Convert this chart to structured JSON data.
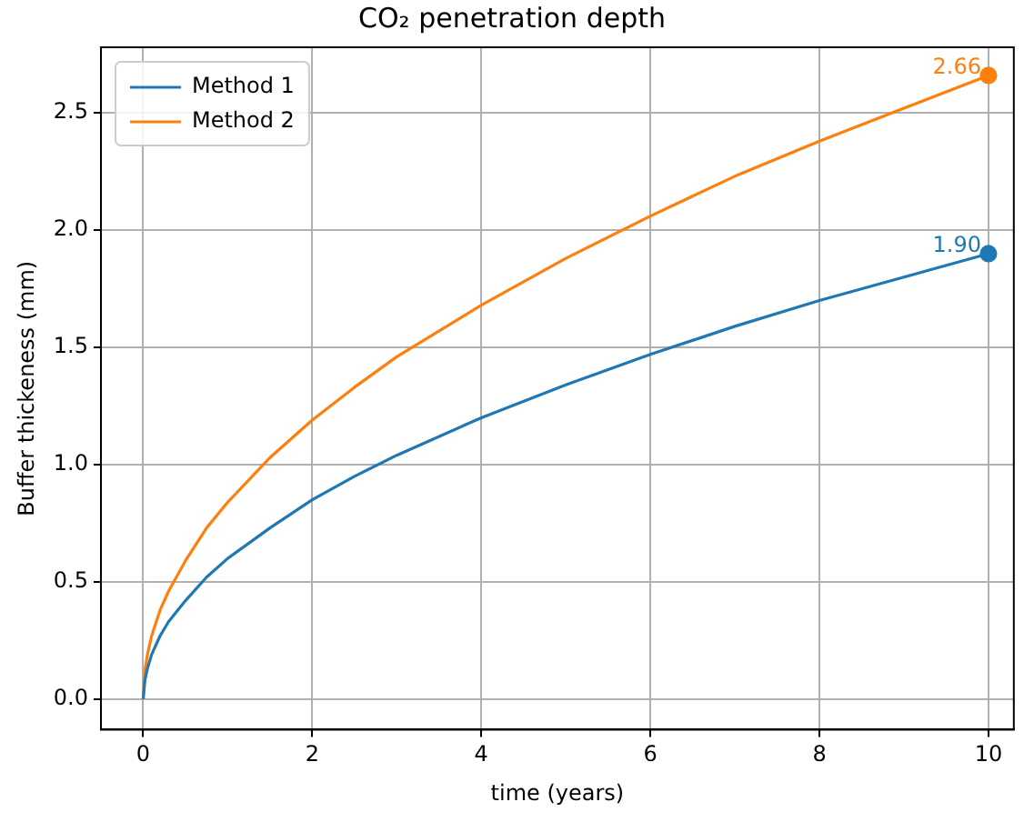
{
  "chart_data": {
    "type": "line",
    "title": "CO₂ penetration depth",
    "xlabel": "time (years)",
    "ylabel": "Buffer thickeness (mm)",
    "x": [
      0,
      0.02,
      0.05,
      0.1,
      0.2,
      0.3,
      0.5,
      0.75,
      1,
      1.5,
      2,
      2.5,
      3,
      4,
      5,
      6,
      7,
      8,
      9,
      10
    ],
    "series": [
      {
        "name": "Method 1",
        "color": "#1f77b4",
        "values": [
          0,
          0.08,
          0.13,
          0.19,
          0.27,
          0.33,
          0.42,
          0.52,
          0.6,
          0.73,
          0.85,
          0.95,
          1.04,
          1.2,
          1.34,
          1.47,
          1.59,
          1.7,
          1.8,
          1.9
        ],
        "value_labels": [
          null,
          null,
          null,
          null,
          null,
          null,
          null,
          null,
          null,
          null,
          null,
          null,
          null,
          null,
          null,
          null,
          null,
          null,
          null,
          "1.90"
        ]
      },
      {
        "name": "Method 2",
        "color": "#ff7f0e",
        "values": [
          0,
          0.12,
          0.19,
          0.27,
          0.38,
          0.46,
          0.59,
          0.73,
          0.84,
          1.03,
          1.19,
          1.33,
          1.46,
          1.68,
          1.88,
          2.06,
          2.23,
          2.38,
          2.52,
          2.66
        ],
        "value_labels": [
          null,
          null,
          null,
          null,
          null,
          null,
          null,
          null,
          null,
          null,
          null,
          null,
          null,
          null,
          null,
          null,
          null,
          null,
          null,
          "2.66"
        ]
      }
    ],
    "xlim": [
      -0.5,
      10.3
    ],
    "xticks": [
      0,
      2,
      4,
      6,
      8,
      10
    ],
    "ylim": [
      -0.13,
      2.78
    ],
    "yticks": [
      {
        "value": 0,
        "label": "0.0"
      },
      {
        "value": 0.5,
        "label": "0.5"
      },
      {
        "value": 1,
        "label": "1.0"
      },
      {
        "value": 1.5,
        "label": "1.5"
      },
      {
        "value": 2,
        "label": "2.0"
      },
      {
        "value": 2.5,
        "label": "2.5"
      }
    ],
    "grid": true,
    "legend": "top left",
    "line_style": "solid"
  }
}
